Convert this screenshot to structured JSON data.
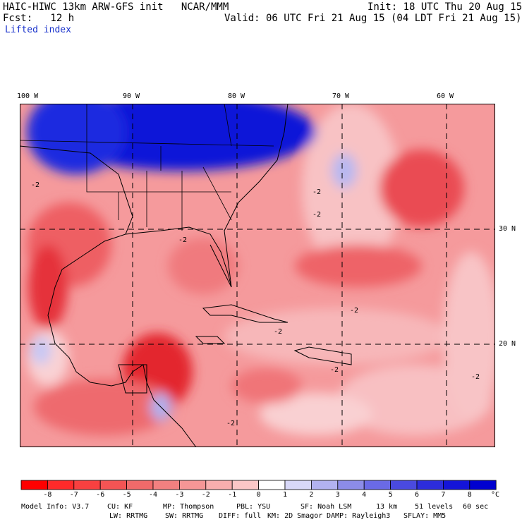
{
  "header": {
    "model_line": "HAIC-HIWC 13km ARW-GFS init   NCAR/MMM",
    "init_line": "Init: 18 UTC Thu 20 Aug 15",
    "fcst_line": "Fcst:   12 h",
    "valid_line": "Valid: 06 UTC Fri 21 Aug 15 (04 LDT Fri 21 Aug 15)",
    "field_name": "Lifted index"
  },
  "map": {
    "lon_labels": [
      "100 W",
      "90 W",
      "80 W",
      "70 W",
      "60 W"
    ],
    "lat_labels": [
      "30 N",
      "20 N"
    ],
    "contour_labels": [
      "-2",
      "-2",
      "-2",
      "-2",
      "-2",
      "-2",
      "-2",
      "-2",
      "-2"
    ],
    "colors": {
      "deep_blue": "#0a14d8",
      "light_red": "#f7b7b9",
      "mid_red": "#f0696d",
      "deep_red": "#e3212c",
      "white": "#ffffff"
    }
  },
  "colorbar": {
    "ticks": [
      "-8",
      "-7",
      "-6",
      "-5",
      "-4",
      "-3",
      "-2",
      "-1",
      "0",
      "1",
      "2",
      "3",
      "4",
      "5",
      "6",
      "7",
      "8"
    ],
    "unit": "°C",
    "colors": [
      "#ff0000",
      "#ff2a2a",
      "#f84040",
      "#f45454",
      "#f06a6a",
      "#f28080",
      "#f59696",
      "#f8aeae",
      "#fbc7c7",
      "#ffffff",
      "#d8d8f8",
      "#b2b2f0",
      "#8c8ce8",
      "#6a6ae6",
      "#4a4ae0",
      "#2c2cdc",
      "#1414d8",
      "#0000d0"
    ]
  },
  "footer": {
    "line1_left": "Model Info: V3.7",
    "line1_cu": "CU: KF",
    "line1_mp": "MP: Thompson",
    "line1_pbl": "PBL: YSU",
    "line1_sf": "SF: Noah LSM",
    "line1_res": "13 km",
    "line1_levels": "51 levels",
    "line1_dt": "60 sec",
    "line2_lw": "LW: RRTMG",
    "line2_sw": "SW: RRTMG",
    "line2_diff": "DIFF: full",
    "line2_km": "KM: 2D Smagor",
    "line2_damp": "DAMP: Rayleigh3",
    "line2_sflay": "SFLAY: MM5"
  }
}
